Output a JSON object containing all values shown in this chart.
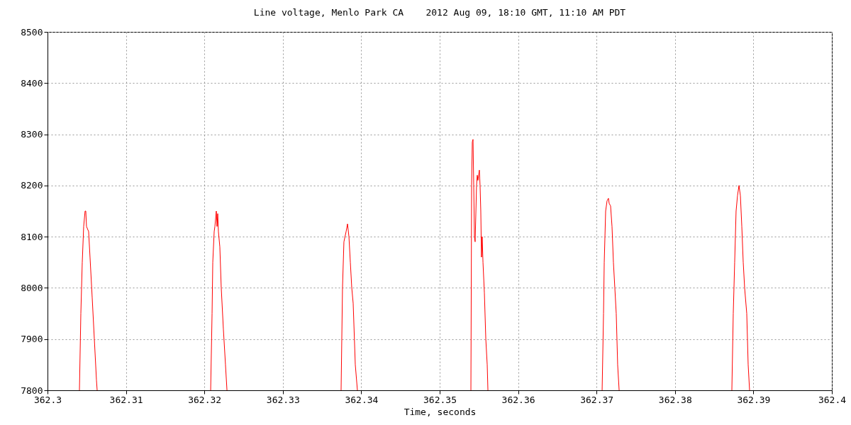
{
  "chart_data": {
    "type": "line",
    "title": "Line voltage, Menlo Park CA    2012 Aug 09, 18:10 GMT, 11:10 AM PDT",
    "xlabel": "Time, seconds",
    "xlim": [
      362.3,
      362.4
    ],
    "xticks": [
      362.3,
      362.31,
      362.32,
      362.33,
      362.34,
      362.35,
      362.36,
      362.37,
      362.38,
      362.39,
      362.4
    ],
    "ylim": [
      7800,
      8500
    ],
    "yticks": [
      7800,
      7900,
      8000,
      8100,
      8200,
      8300,
      8400,
      8500
    ],
    "grid": true,
    "marker": "none",
    "line_style": "solid",
    "series": [
      {
        "color": "#ff0000",
        "x": [
          362.30407,
          362.30425,
          362.30443,
          362.30461,
          362.30479,
          362.30488,
          362.30497,
          362.30524,
          362.30542,
          362.3057,
          362.30597,
          362.30624,
          362.30633,
          362.312,
          362.3208,
          362.32098,
          362.32107,
          362.32125,
          362.32134,
          362.32152,
          362.32161,
          362.3217,
          362.32179,
          362.32197,
          362.32215,
          362.32242,
          362.32269,
          362.32288,
          362.33,
          362.33743,
          362.33761,
          362.33779,
          362.33807,
          362.33825,
          362.33843,
          362.33861,
          362.33879,
          362.33897,
          362.33924,
          362.33951,
          362.345,
          362.35398,
          362.35407,
          362.35416,
          362.35425,
          362.35434,
          362.35443,
          362.35452,
          362.3547,
          362.35479,
          362.35488,
          362.35506,
          362.35515,
          362.35524,
          362.35533,
          362.35542,
          362.35552,
          362.3557,
          362.35588,
          362.35606,
          362.35615,
          362.363,
          362.37071,
          362.37089,
          362.37098,
          362.37107,
          362.37116,
          362.37134,
          362.37152,
          362.37161,
          362.37179,
          362.37197,
          362.37215,
          362.37233,
          362.37251,
          362.37269,
          362.37288,
          362.38,
          362.38725,
          362.38743,
          362.38761,
          362.38779,
          362.38797,
          362.38816,
          362.38834,
          362.38852,
          362.3887,
          362.38888,
          362.38915,
          362.38933,
          362.38951
        ],
        "values": [
          7800,
          7950,
          8050,
          8120,
          8150,
          8150,
          8120,
          8110,
          8060,
          7980,
          7900,
          7820,
          7800,
          null,
          7800,
          7950,
          8050,
          8110,
          8120,
          8150,
          8120,
          8145,
          8110,
          8080,
          8000,
          7920,
          7850,
          7800,
          null,
          7800,
          8000,
          8090,
          8110,
          8125,
          8100,
          8050,
          8000,
          7970,
          7850,
          7800,
          null,
          7800,
          8200,
          8285,
          8290,
          8200,
          8100,
          8090,
          8200,
          8220,
          8210,
          8230,
          8200,
          8150,
          8060,
          8100,
          8050,
          7990,
          7900,
          7850,
          7800,
          null,
          7800,
          7950,
          8050,
          8100,
          8150,
          8170,
          8175,
          8165,
          8160,
          8120,
          8050,
          8000,
          7950,
          7850,
          7800,
          null,
          7800,
          7950,
          8050,
          8150,
          8180,
          8200,
          8180,
          8120,
          8050,
          8000,
          7950,
          7850,
          7800
        ]
      }
    ]
  }
}
